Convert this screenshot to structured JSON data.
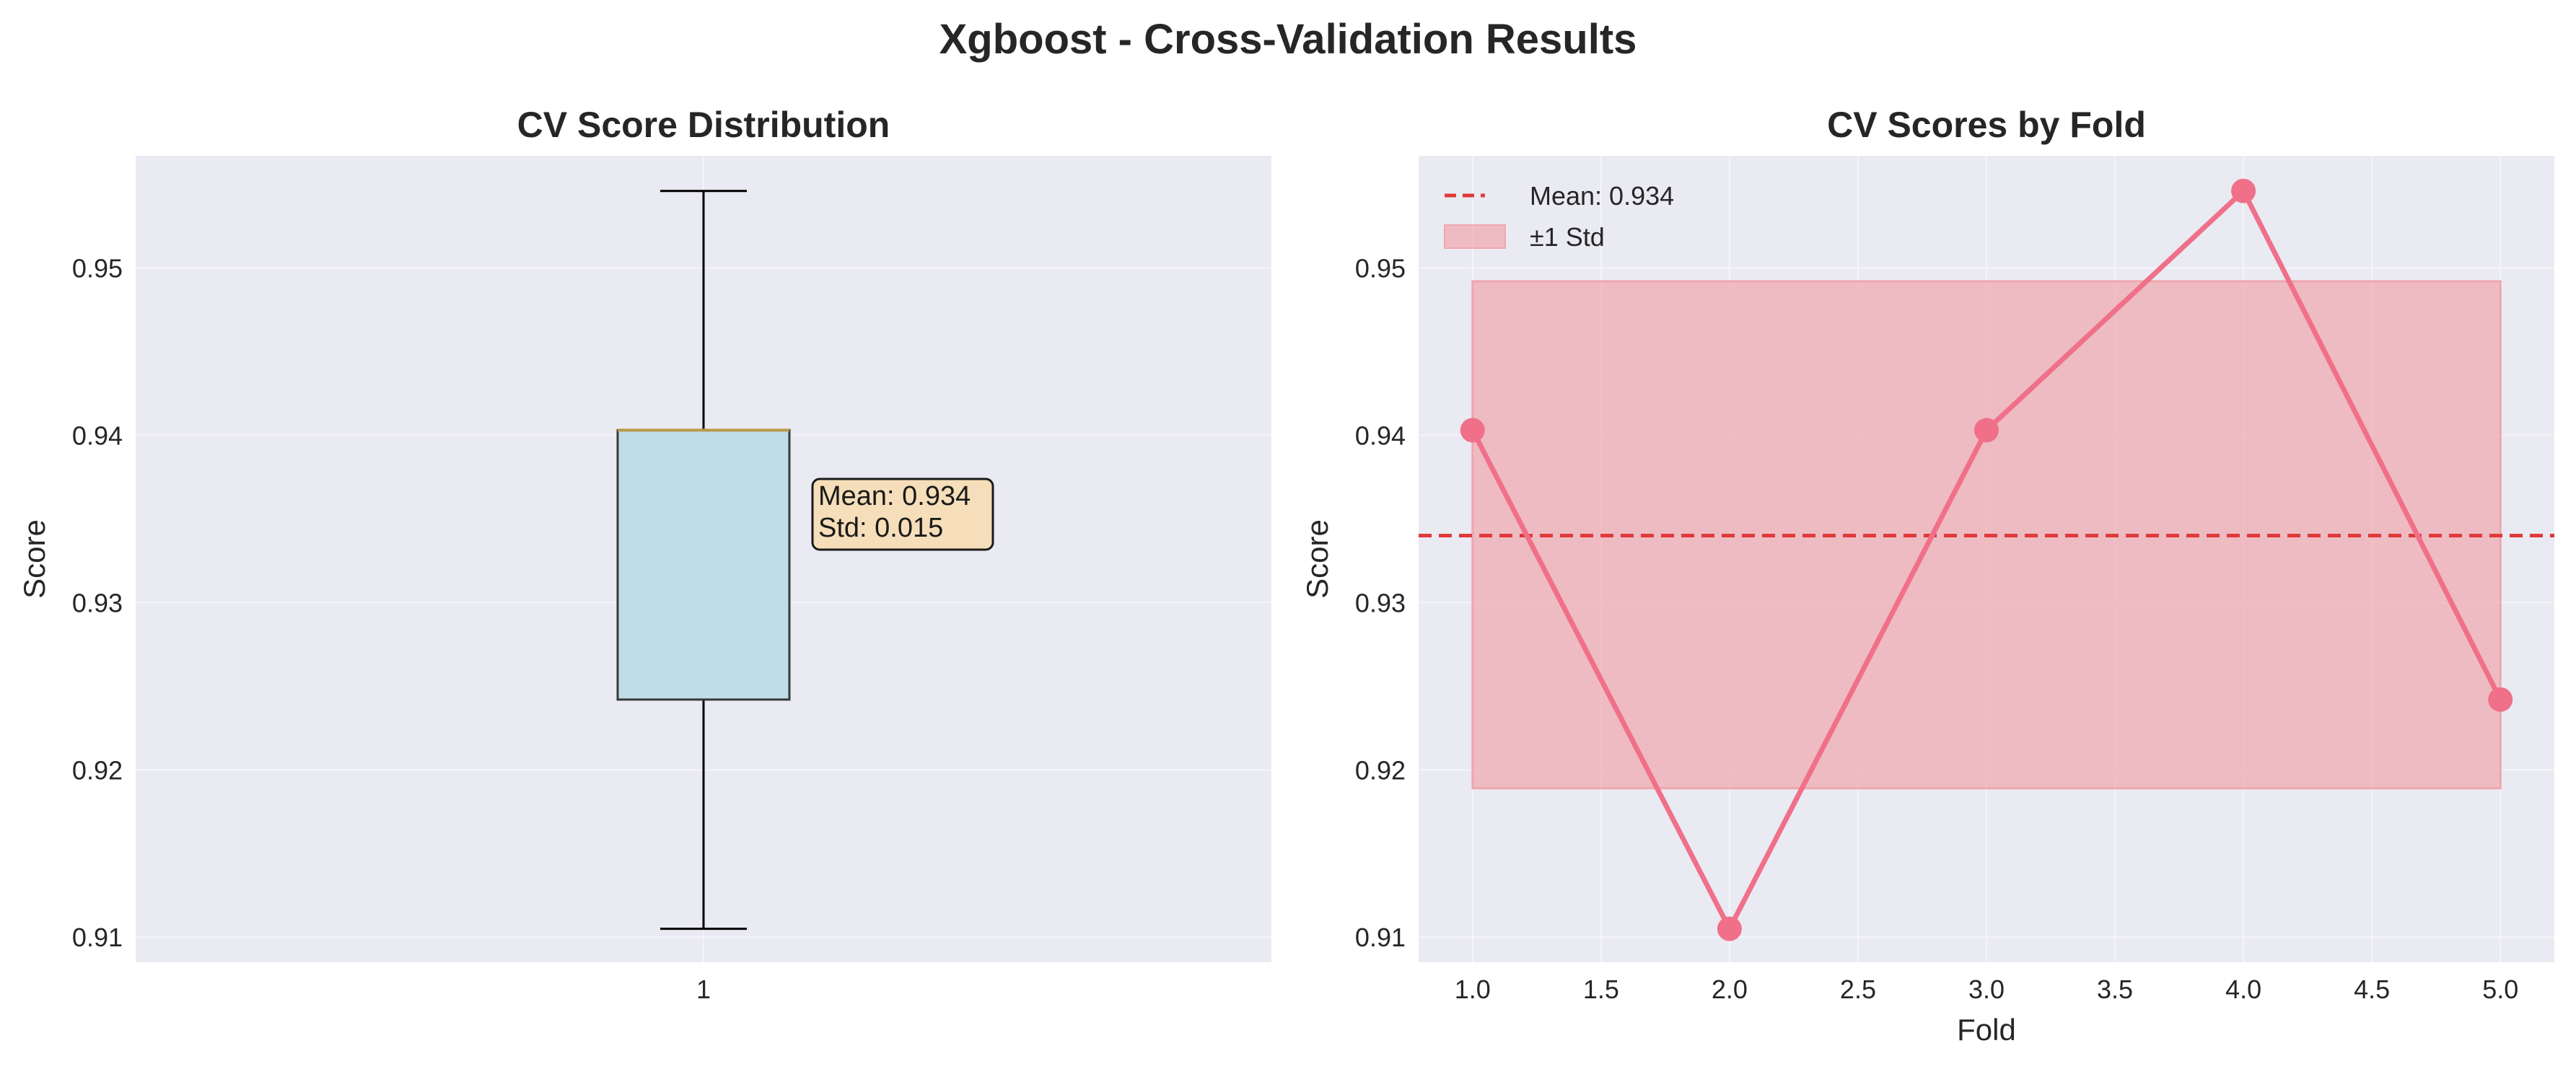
{
  "figure": {
    "suptitle": "Xgboost - Cross-Validation Results"
  },
  "colors": {
    "axes_bg": "#eaeaf2",
    "grid": "#f4f4f9",
    "box_fill": "#bfdde8",
    "box_edge": "#3a3a3a",
    "median": "#b89a4a",
    "annotation_bg": "#f5deb9",
    "line": "#f07089",
    "mean_line": "#e03a3a",
    "std_fill": "#f0a6ae"
  },
  "chart_data": [
    {
      "type": "box",
      "title": "CV Score Distribution",
      "xlabel": "",
      "ylabel": "Score",
      "categories": [
        "1"
      ],
      "ylim": [
        0.9085,
        0.9567
      ],
      "yticks": [
        "0.91",
        "0.92",
        "0.93",
        "0.94",
        "0.95"
      ],
      "box": {
        "min": 0.9105,
        "q1": 0.9242,
        "median": 0.9403,
        "q3": 0.9403,
        "max": 0.9546
      },
      "annotation": {
        "mean_text": "Mean: 0.934",
        "std_text": "Std: 0.015"
      },
      "grid": true
    },
    {
      "type": "line",
      "title": "CV Scores by Fold",
      "xlabel": "Fold",
      "ylabel": "Score",
      "x": [
        1,
        2,
        3,
        4,
        5
      ],
      "y": [
        0.9403,
        0.9105,
        0.9403,
        0.9546,
        0.9242
      ],
      "xlim": [
        0.79,
        5.21
      ],
      "ylim": [
        0.9085,
        0.9567
      ],
      "xticks": [
        "1.0",
        "1.5",
        "2.0",
        "2.5",
        "3.0",
        "3.5",
        "4.0",
        "4.5",
        "5.0"
      ],
      "yticks": [
        "0.91",
        "0.92",
        "0.93",
        "0.94",
        "0.95"
      ],
      "mean": 0.934,
      "std_band": [
        0.9189,
        0.9492
      ],
      "legend": {
        "placement": "top-left",
        "entries": [
          "Mean: 0.934",
          "±1 Std"
        ]
      },
      "grid": true
    }
  ]
}
